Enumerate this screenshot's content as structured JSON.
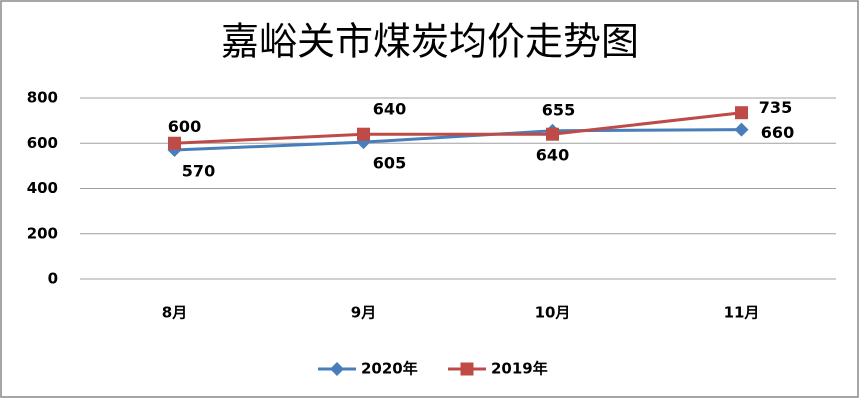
{
  "chart_data": {
    "type": "line",
    "title": "嘉峪关市煤炭均价走势图",
    "categories": [
      "8月",
      "9月",
      "10月",
      "11月"
    ],
    "series": [
      {
        "name": "2020年",
        "color": "#4a7ebb",
        "marker": "diamond",
        "values": [
          570,
          605,
          655,
          660
        ]
      },
      {
        "name": "2019年",
        "color": "#be4b48",
        "marker": "square",
        "values": [
          600,
          640,
          640,
          735
        ]
      }
    ],
    "ylim": [
      0,
      800
    ],
    "yticks": [
      0,
      200,
      400,
      600,
      800
    ],
    "grid": true,
    "legend": "bottom"
  }
}
